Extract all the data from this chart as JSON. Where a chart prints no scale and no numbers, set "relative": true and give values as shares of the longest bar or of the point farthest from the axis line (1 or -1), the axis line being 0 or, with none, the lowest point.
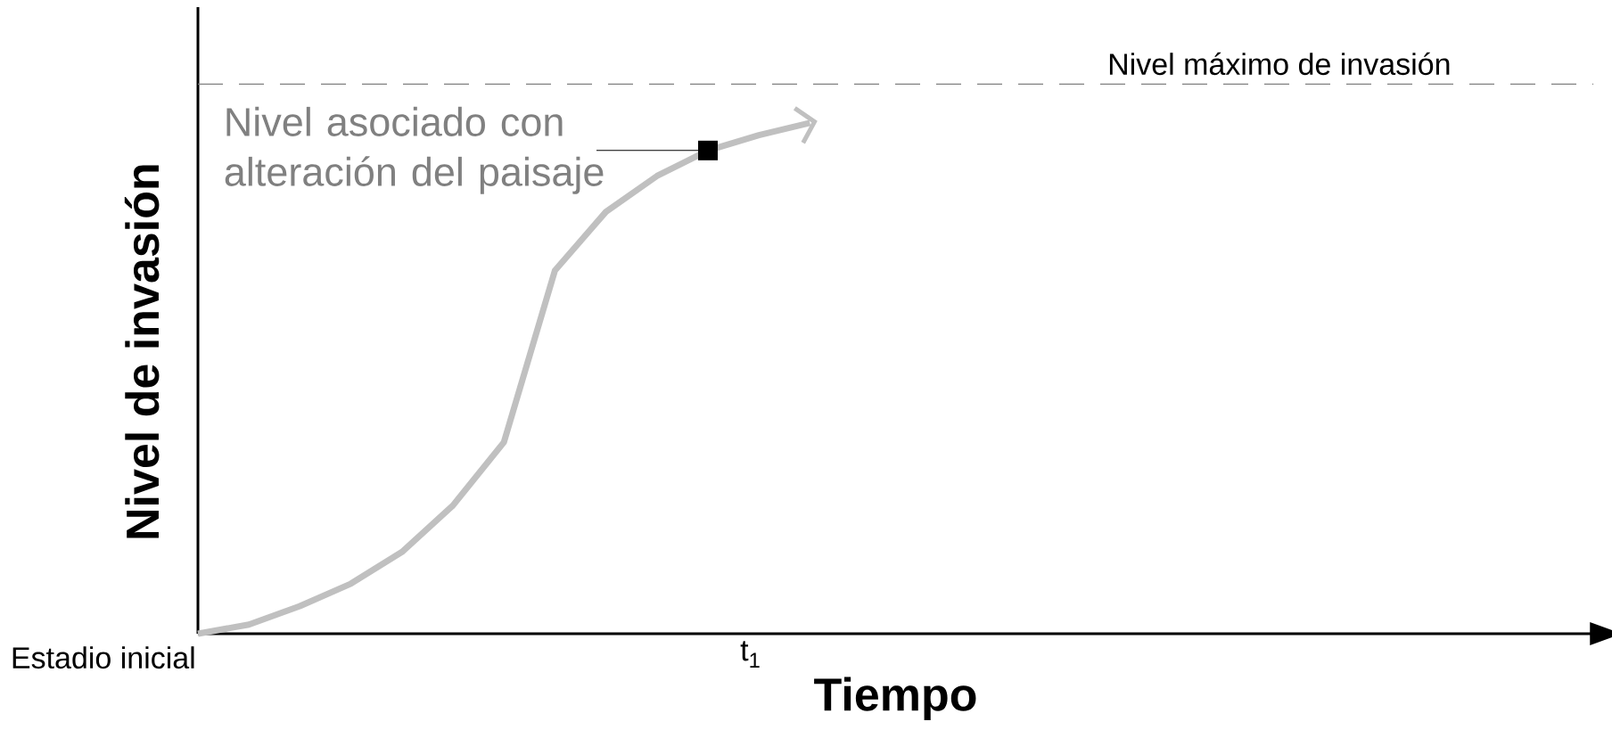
{
  "chart_data": {
    "type": "line",
    "relative": true,
    "xlabel": "Tiempo",
    "ylabel": "Nivel de invasión",
    "categories": [
      null,
      null,
      null,
      null,
      null,
      null,
      null,
      null,
      null,
      null,
      null,
      null,
      null
    ],
    "series": [
      {
        "color": "#c0c0c0",
        "values": [
          0,
          0.018,
          0.054,
          0.098,
          0.16,
          0.251,
          0.375,
          0.711,
          0.826,
          0.896,
          0.946,
          0.976,
          1.0
        ]
      }
    ],
    "ref_lines": [
      {
        "axis": "y",
        "value": 1.076,
        "label": "Nivel máximo de invasión",
        "color": "#808080",
        "line_style": "dashed"
      }
    ],
    "annotations": [
      "Nivel asociado con alteración del paisaje",
      "Estadio inicial",
      "t$_{1}$"
    ],
    "marker": "none",
    "line_style": "solid"
  }
}
